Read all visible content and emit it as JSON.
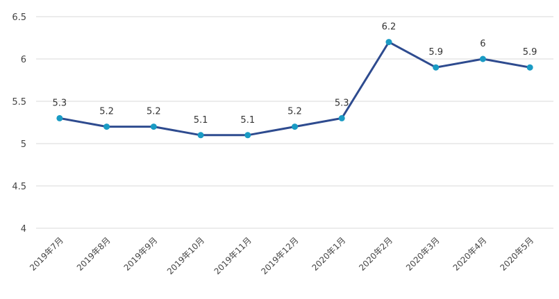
{
  "chart_data": {
    "type": "line",
    "title": "",
    "xlabel": "",
    "ylabel": "",
    "categories": [
      "2019年7月",
      "2019年8月",
      "2019年9月",
      "2019年10月",
      "2019年11月",
      "2019年12月",
      "2020年1月",
      "2020年2月",
      "2020年3月",
      "2020年4月",
      "2020年5月"
    ],
    "series": [
      {
        "name": "",
        "values": [
          5.3,
          5.2,
          5.2,
          5.1,
          5.1,
          5.2,
          5.3,
          6.2,
          5.9,
          6,
          5.9
        ],
        "color": "#2e4b8f",
        "marker_color": "#1a9bc4"
      }
    ],
    "data_labels": [
      "5.3",
      "5.2",
      "5.2",
      "5.1",
      "5.1",
      "5.2",
      "5.3",
      "6.2",
      "5.9",
      "6",
      "5.9"
    ],
    "ylim": [
      4,
      6.5
    ],
    "yticks": [
      4,
      4.5,
      5,
      5.5,
      6,
      6.5
    ],
    "ytick_labels": [
      "4",
      "4.5",
      "5",
      "5.5",
      "6",
      "6.5"
    ],
    "grid": true,
    "grid_color": "#d9d9d9",
    "legend": "none"
  }
}
